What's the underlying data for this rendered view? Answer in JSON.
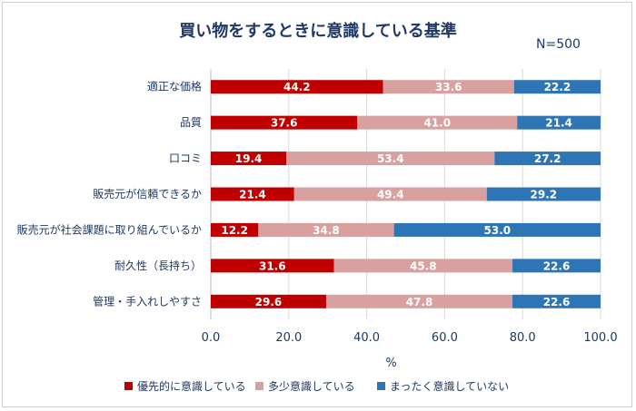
{
  "chart_data": {
    "type": "bar",
    "orientation": "horizontal",
    "stacked": true,
    "title": "買い物をするときに意識している基準",
    "annotation": "N=500",
    "categories": [
      "適正な価格",
      "品質",
      "口コミ",
      "販売元が信頼できるか",
      "販売元が社会課題に取り組んでいるか",
      "耐久性（長持ち）",
      "管理・手入れしやすさ"
    ],
    "series": [
      {
        "name": "優先的に意識している",
        "color": "#c00000",
        "values": [
          44.2,
          37.6,
          19.4,
          21.4,
          12.2,
          31.6,
          29.6
        ]
      },
      {
        "name": "多少意識している",
        "color": "#d9a0a0",
        "values": [
          33.6,
          41.0,
          53.4,
          49.4,
          34.8,
          45.8,
          47.8
        ]
      },
      {
        "name": "まったく意識していない",
        "color": "#2e75b6",
        "values": [
          22.2,
          21.4,
          27.2,
          29.2,
          53.0,
          22.6,
          22.6
        ]
      }
    ],
    "xlabel": "%",
    "ylabel": "",
    "xlim": [
      0,
      100
    ],
    "xticks": [
      "0.0",
      "20.0",
      "40.0",
      "60.0",
      "80.0",
      "100.0"
    ],
    "grid": true,
    "legend_position": "bottom"
  }
}
